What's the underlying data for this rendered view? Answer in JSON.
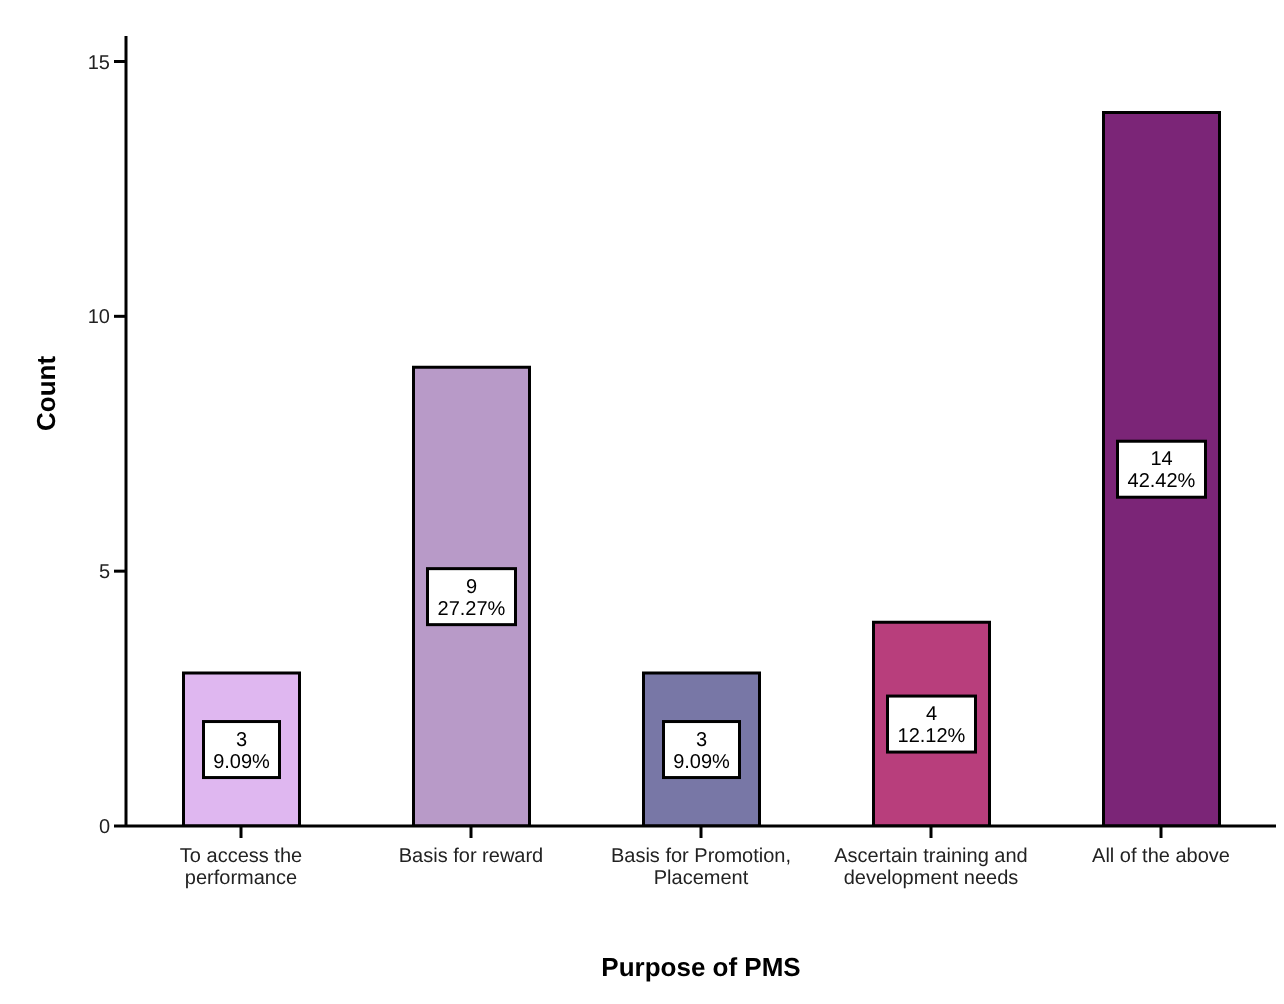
{
  "chart_data": {
    "type": "bar",
    "xlabel": "Purpose of PMS",
    "ylabel": "Count",
    "categories": [
      "To access the performance",
      "Basis for reward",
      "Basis for Promotion, Placement",
      "Ascertain training and development needs",
      "All of the above"
    ],
    "values": [
      3,
      9,
      3,
      4,
      14
    ],
    "colors": [
      "#dfb7f0",
      "#b89ac8",
      "#7877a6",
      "#b83e7c",
      "#7b2577"
    ],
    "value_labels": [
      "3\n9.09%",
      "9\n27.27%",
      "3\n9.09%",
      "4\n12.12%",
      "14\n42.42%"
    ],
    "ylim": [
      0,
      15.5
    ],
    "yticks": [
      0,
      5,
      10,
      15
    ],
    "grid": false,
    "legend": false
  }
}
